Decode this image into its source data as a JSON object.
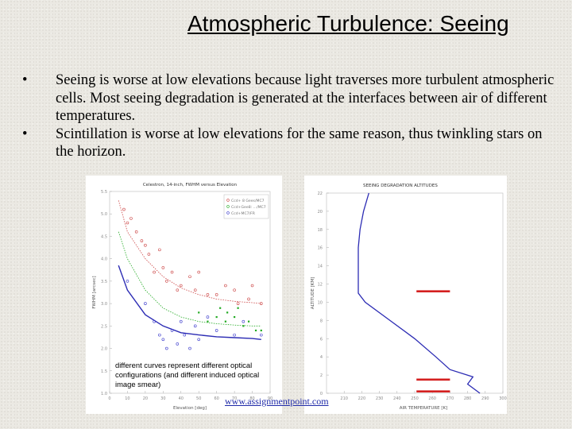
{
  "slide": {
    "title": "Atmospheric Turbulence: Seeing",
    "bullets": [
      "Seeing is worse at low elevations because light traverses more turbulent atmospheric cells. Most seeing degradation is generated at the interfaces between air of different temperatures.",
      "Scintillation is worse at low elevations for the same reason, thus twinkling stars on the horizon."
    ],
    "bullet_symbol": "•",
    "note": "different curves represent different optical configurations (and different induced optical image smear)",
    "link": "www.assignmentpoint.com"
  },
  "colors": {
    "seeing_curve": "#2c2cb4",
    "marker": "#d42020",
    "series_red": "#cc4444",
    "series_green": "#22aa22",
    "series_blue": "#3a3acc"
  },
  "chart_data": [
    {
      "type": "scatter",
      "title": "Celestron, 14-inch, FWHM versus Elevation",
      "xlabel": "Elevation [deg]",
      "ylabel": "FWHM [arcsec]",
      "xlim": [
        0,
        90
      ],
      "ylim": [
        1.0,
        5.5
      ],
      "legend": [
        "Ccd+ 8 Gees/MC7",
        "Ccd+Gee8: .../MC7",
        "Ccd+MC7/FR"
      ],
      "legend_position": "top-right",
      "series": [
        {
          "color": "red",
          "points": [
            [
              8,
              5.1
            ],
            [
              10,
              4.8
            ],
            [
              12,
              4.9
            ],
            [
              15,
              4.6
            ],
            [
              18,
              4.4
            ],
            [
              20,
              4.3
            ],
            [
              22,
              4.1
            ],
            [
              25,
              3.7
            ],
            [
              28,
              4.2
            ],
            [
              30,
              3.8
            ],
            [
              32,
              3.5
            ],
            [
              35,
              3.7
            ],
            [
              38,
              3.3
            ],
            [
              40,
              3.4
            ],
            [
              45,
              3.6
            ],
            [
              48,
              3.3
            ],
            [
              50,
              3.7
            ],
            [
              55,
              3.2
            ],
            [
              60,
              3.2
            ],
            [
              65,
              3.4
            ],
            [
              70,
              3.3
            ],
            [
              72,
              3.0
            ],
            [
              78,
              3.1
            ],
            [
              80,
              3.4
            ],
            [
              85,
              3.0
            ]
          ],
          "fit": [
            [
              5,
              5.3
            ],
            [
              10,
              4.6
            ],
            [
              20,
              4.0
            ],
            [
              30,
              3.6
            ],
            [
              40,
              3.35
            ],
            [
              50,
              3.2
            ],
            [
              60,
              3.1
            ],
            [
              70,
              3.05
            ],
            [
              80,
              3.02
            ],
            [
              85,
              3.0
            ]
          ]
        },
        {
          "color": "green",
          "points": [
            [
              50,
              2.8
            ],
            [
              55,
              2.6
            ],
            [
              60,
              2.7
            ],
            [
              62,
              2.9
            ],
            [
              65,
              2.6
            ],
            [
              66,
              2.8
            ],
            [
              70,
              2.7
            ],
            [
              72,
              2.9
            ],
            [
              75,
              2.5
            ],
            [
              78,
              2.6
            ],
            [
              82,
              2.4
            ],
            [
              85,
              2.4
            ]
          ],
          "fit": [
            [
              5,
              4.6
            ],
            [
              10,
              4.0
            ],
            [
              20,
              3.3
            ],
            [
              30,
              2.9
            ],
            [
              40,
              2.7
            ],
            [
              50,
              2.6
            ],
            [
              60,
              2.55
            ],
            [
              70,
              2.52
            ],
            [
              80,
              2.5
            ],
            [
              85,
              2.5
            ]
          ]
        },
        {
          "color": "blue",
          "points": [
            [
              10,
              3.5
            ],
            [
              20,
              3.0
            ],
            [
              25,
              2.6
            ],
            [
              28,
              2.3
            ],
            [
              30,
              2.2
            ],
            [
              32,
              2.0
            ],
            [
              35,
              2.4
            ],
            [
              38,
              2.1
            ],
            [
              40,
              2.6
            ],
            [
              42,
              2.3
            ],
            [
              45,
              2.0
            ],
            [
              48,
              2.5
            ],
            [
              50,
              2.2
            ],
            [
              55,
              2.7
            ],
            [
              60,
              2.4
            ],
            [
              70,
              2.3
            ],
            [
              75,
              2.6
            ],
            [
              85,
              2.3
            ]
          ],
          "fit": [
            [
              5,
              3.85
            ],
            [
              10,
              3.3
            ],
            [
              20,
              2.75
            ],
            [
              30,
              2.5
            ],
            [
              40,
              2.35
            ],
            [
              50,
              2.3
            ],
            [
              60,
              2.26
            ],
            [
              70,
              2.24
            ],
            [
              80,
              2.22
            ],
            [
              85,
              2.2
            ]
          ]
        }
      ],
      "x_ticks": [
        "0",
        "10",
        "20",
        "30",
        "40",
        "50",
        "60",
        "70",
        "80",
        "90"
      ],
      "y_ticks": [
        "1.0",
        "1.5",
        "2.0",
        "2.5",
        "3.0",
        "3.5",
        "4.0",
        "4.5",
        "5.0",
        "5.5"
      ]
    },
    {
      "type": "line",
      "title": "SEEING DEGRADATION ALTITUDES",
      "xlabel": "AIR TEMPERATURE [K]",
      "ylabel": "ALTITUDE [KM]",
      "xlim": [
        200,
        300
      ],
      "ylim": [
        0,
        22
      ],
      "x_ticks": [
        "210",
        "220",
        "230",
        "240",
        "250",
        "260",
        "270",
        "280",
        "290",
        "300"
      ],
      "y_ticks": [
        "0",
        "2",
        "4",
        "6",
        "8",
        "10",
        "12",
        "14",
        "16",
        "18",
        "20",
        "22"
      ],
      "profile": [
        [
          287,
          0
        ],
        [
          280,
          1
        ],
        [
          283,
          1.8
        ],
        [
          270,
          2.6
        ],
        [
          262,
          4.0
        ],
        [
          250,
          6.0
        ],
        [
          236,
          8.0
        ],
        [
          222,
          10.0
        ],
        [
          218,
          11.0
        ],
        [
          218,
          16.0
        ],
        [
          219,
          18.0
        ],
        [
          221,
          20.0
        ],
        [
          224,
          22.0
        ]
      ],
      "marked_altitudes": [
        0.2,
        1.5,
        11.2
      ]
    }
  ]
}
